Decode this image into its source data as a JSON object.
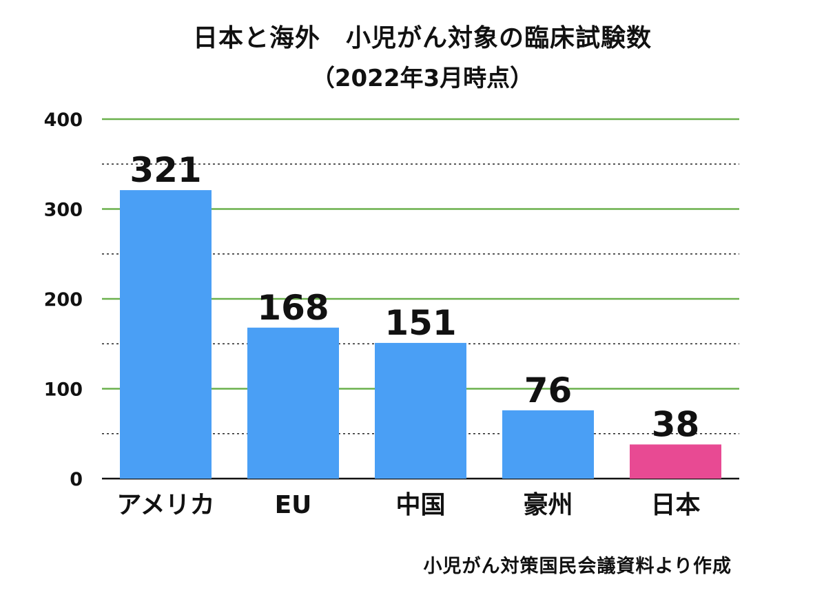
{
  "colors": {
    "bar_default": "#4a9ff5",
    "bar_highlight": "#e84a93",
    "major_grid": "#6ab04c",
    "minor_grid": "#222222",
    "axis": "#111111",
    "text": "#111111"
  },
  "chart_data": {
    "type": "bar",
    "title": "日本と海外　小児がん対象の臨床試験数",
    "subtitle": "（2022年3月時点）",
    "xlabel": "",
    "ylabel": "",
    "categories": [
      "アメリカ",
      "EU",
      "中国",
      "豪州",
      "日本"
    ],
    "values": [
      321,
      168,
      151,
      76,
      38
    ],
    "value_labels": [
      "321",
      "168",
      "151",
      "76",
      "38"
    ],
    "highlight_category": "日本",
    "ylim": [
      0,
      400
    ],
    "yticks": [
      0,
      100,
      200,
      300,
      400
    ],
    "minor_gridlines": [
      50,
      150,
      250,
      350
    ],
    "grid": true,
    "legend": "none"
  },
  "source_note": "小児がん対策国民会議資料より作成"
}
